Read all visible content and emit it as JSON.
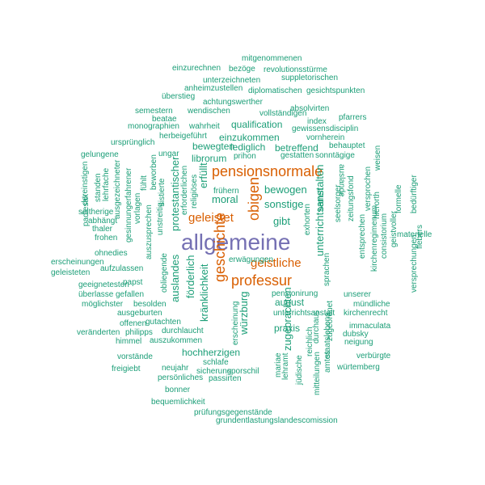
{
  "words": [
    {
      "text": "allgemeine",
      "color": "purple"
    },
    {
      "text": "pensionsnormale",
      "color": "orange"
    },
    {
      "text": "professur",
      "color": "orange"
    },
    {
      "text": "obigen",
      "color": "orange"
    },
    {
      "text": "geschichte",
      "color": "orange"
    },
    {
      "text": "geleistet",
      "color": "orange"
    },
    {
      "text": "geistliche",
      "color": "orange"
    },
    {
      "text": "bewogen",
      "color": "teal"
    },
    {
      "text": "sonstige",
      "color": "teal"
    },
    {
      "text": "gibt",
      "color": "teal"
    },
    {
      "text": "moral",
      "color": "teal"
    },
    {
      "text": "erfüllt",
      "color": "teal"
    },
    {
      "text": "unterrichtsanstalten",
      "color": "teal"
    },
    {
      "text": "zugebrachten",
      "color": "teal"
    },
    {
      "text": "würzburg",
      "color": "teal"
    },
    {
      "text": "kränklichkeit",
      "color": "teal"
    },
    {
      "text": "förderlich",
      "color": "teal"
    },
    {
      "text": "auslandes",
      "color": "teal"
    },
    {
      "text": "protestantischer",
      "color": "teal"
    },
    {
      "text": "hochherzigen",
      "color": "teal"
    },
    {
      "text": "praxis",
      "color": "teal"
    },
    {
      "text": "august",
      "color": "teal"
    },
    {
      "text": "qualification",
      "color": "teal"
    },
    {
      "text": "lediglich",
      "color": "teal"
    },
    {
      "text": "einzukommen",
      "color": "teal"
    },
    {
      "text": "bewegten",
      "color": "teal"
    },
    {
      "text": "librorum",
      "color": "teal"
    },
    {
      "text": "betreffend",
      "color": "teal"
    },
    {
      "text": "behauptet",
      "color": "teal"
    },
    {
      "text": "gestatten",
      "color": "teal"
    },
    {
      "text": "sonntägige",
      "color": "teal"
    },
    {
      "text": "mitgenommenen",
      "color": "teal"
    },
    {
      "text": "einzurechnen",
      "color": "teal"
    },
    {
      "text": "bezöge",
      "color": "teal"
    },
    {
      "text": "revolutionsstürme",
      "color": "teal"
    },
    {
      "text": "unterzeichneten",
      "color": "teal"
    },
    {
      "text": "suppletorischen",
      "color": "teal"
    },
    {
      "text": "anheimzustellen",
      "color": "teal"
    },
    {
      "text": "diplomatischen",
      "color": "teal"
    },
    {
      "text": "gesichtspunkten",
      "color": "teal"
    },
    {
      "text": "überstieg",
      "color": "teal"
    },
    {
      "text": "achtungswerther",
      "color": "teal"
    },
    {
      "text": "absolvirten",
      "color": "teal"
    },
    {
      "text": "semestern",
      "color": "teal"
    },
    {
      "text": "wendischen",
      "color": "teal"
    },
    {
      "text": "vollständigen",
      "color": "teal"
    },
    {
      "text": "pfarrers",
      "color": "teal"
    },
    {
      "text": "beatae",
      "color": "teal"
    },
    {
      "text": "index",
      "color": "teal"
    },
    {
      "text": "monographien",
      "color": "teal"
    },
    {
      "text": "wahrheit",
      "color": "teal"
    },
    {
      "text": "gewissensdisciplin",
      "color": "teal"
    },
    {
      "text": "herbeigeführt",
      "color": "teal"
    },
    {
      "text": "vornherein",
      "color": "teal"
    },
    {
      "text": "ursprünglich",
      "color": "teal"
    },
    {
      "text": "ungar",
      "color": "teal"
    },
    {
      "text": "prihon",
      "color": "teal"
    },
    {
      "text": "gelungene",
      "color": "teal"
    },
    {
      "text": "dereinstigen",
      "color": "teal"
    },
    {
      "text": "standen",
      "color": "teal"
    },
    {
      "text": "lehrfache",
      "color": "teal"
    },
    {
      "text": "ausgezeichneter",
      "color": "teal"
    },
    {
      "text": "gesinnungerfahrener",
      "color": "teal"
    },
    {
      "text": "beworben",
      "color": "teal"
    },
    {
      "text": "fühlt",
      "color": "teal"
    },
    {
      "text": "sistierte",
      "color": "teal"
    },
    {
      "text": "erforderlichen",
      "color": "teal"
    },
    {
      "text": "religiöses",
      "color": "teal"
    },
    {
      "text": "frühern",
      "color": "teal"
    },
    {
      "text": "betreff",
      "color": "teal"
    },
    {
      "text": "seelsorger",
      "color": "teal"
    },
    {
      "text": "zeitungsfond",
      "color": "teal"
    },
    {
      "text": "auslande",
      "color": "teal"
    },
    {
      "text": "versprochen",
      "color": "teal"
    },
    {
      "text": "weisen",
      "color": "teal"
    },
    {
      "text": "hierorth",
      "color": "teal"
    },
    {
      "text": "formelle",
      "color": "teal"
    },
    {
      "text": "bedürftiger",
      "color": "teal"
    },
    {
      "text": "seitherige",
      "color": "teal"
    },
    {
      "text": "abhängt",
      "color": "teal"
    },
    {
      "text": "thaler",
      "color": "teal"
    },
    {
      "text": "frohen",
      "color": "teal"
    },
    {
      "text": "ohnedies",
      "color": "teal"
    },
    {
      "text": "padlesak",
      "color": "teal"
    },
    {
      "text": "vorlagen",
      "color": "teal"
    },
    {
      "text": "auszusprechen",
      "color": "teal"
    },
    {
      "text": "unstreitig",
      "color": "teal"
    },
    {
      "text": "obliegende",
      "color": "teal"
    },
    {
      "text": "exhorten",
      "color": "teal"
    },
    {
      "text": "sprachen",
      "color": "teal"
    },
    {
      "text": "entsprechen",
      "color": "teal"
    },
    {
      "text": "kirchenregimenum",
      "color": "teal"
    },
    {
      "text": "consistorium",
      "color": "teal"
    },
    {
      "text": "geistvoller",
      "color": "teal"
    },
    {
      "text": "materielle",
      "color": "teal"
    },
    {
      "text": "versprechungen",
      "color": "teal"
    },
    {
      "text": "fiebers",
      "color": "teal"
    },
    {
      "text": "erscheinungen",
      "color": "teal"
    },
    {
      "text": "geleisteten",
      "color": "teal"
    },
    {
      "text": "aufzulassen",
      "color": "teal"
    },
    {
      "text": "erwägungen",
      "color": "teal"
    },
    {
      "text": "geeignetesten",
      "color": "teal"
    },
    {
      "text": "papst",
      "color": "teal"
    },
    {
      "text": "überlasse",
      "color": "teal"
    },
    {
      "text": "gefallen",
      "color": "teal"
    },
    {
      "text": "möglichster",
      "color": "teal"
    },
    {
      "text": "besolden",
      "color": "teal"
    },
    {
      "text": "pensionirung",
      "color": "teal"
    },
    {
      "text": "unserer",
      "color": "teal"
    },
    {
      "text": "mündliche",
      "color": "teal"
    },
    {
      "text": "ausgeburten",
      "color": "teal"
    },
    {
      "text": "unterrichtsanstalt",
      "color": "teal"
    },
    {
      "text": "kirchenrecht",
      "color": "teal"
    },
    {
      "text": "offenen",
      "color": "teal"
    },
    {
      "text": "gutachten",
      "color": "teal"
    },
    {
      "text": "immaculata",
      "color": "teal"
    },
    {
      "text": "veränderten",
      "color": "teal"
    },
    {
      "text": "philipps",
      "color": "teal"
    },
    {
      "text": "durchlaucht",
      "color": "teal"
    },
    {
      "text": "dubsky",
      "color": "teal"
    },
    {
      "text": "himmel",
      "color": "teal"
    },
    {
      "text": "auszukommen",
      "color": "teal"
    },
    {
      "text": "neigung",
      "color": "teal"
    },
    {
      "text": "erscheinung",
      "color": "teal"
    },
    {
      "text": "reichlich",
      "color": "teal"
    },
    {
      "text": "durchaus",
      "color": "teal"
    },
    {
      "text": "staatslebens",
      "color": "teal"
    },
    {
      "text": "zugeordnet",
      "color": "teal"
    },
    {
      "text": "mitteilungen",
      "color": "teal"
    },
    {
      "text": "amtes",
      "color": "teal"
    },
    {
      "text": "verbürgte",
      "color": "teal"
    },
    {
      "text": "vorstände",
      "color": "teal"
    },
    {
      "text": "schlafe",
      "color": "teal"
    },
    {
      "text": "würtemberg",
      "color": "teal"
    },
    {
      "text": "freigiebt",
      "color": "teal"
    },
    {
      "text": "neujahr",
      "color": "teal"
    },
    {
      "text": "sicherung",
      "color": "teal"
    },
    {
      "text": "sporschil",
      "color": "teal"
    },
    {
      "text": "mariae",
      "color": "teal"
    },
    {
      "text": "lehramt",
      "color": "teal"
    },
    {
      "text": "jüdische",
      "color": "teal"
    },
    {
      "text": "persönliches",
      "color": "teal"
    },
    {
      "text": "passirten",
      "color": "teal"
    },
    {
      "text": "bonner",
      "color": "teal"
    },
    {
      "text": "bequemlichkeit",
      "color": "teal"
    },
    {
      "text": "prüfungsgegenstände",
      "color": "teal"
    },
    {
      "text": "grundentlastungslandescomission",
      "color": "teal"
    },
    {
      "text": "zurückstehens",
      "color": "teal"
    },
    {
      "text": "einzählung",
      "color": "teal"
    }
  ]
}
